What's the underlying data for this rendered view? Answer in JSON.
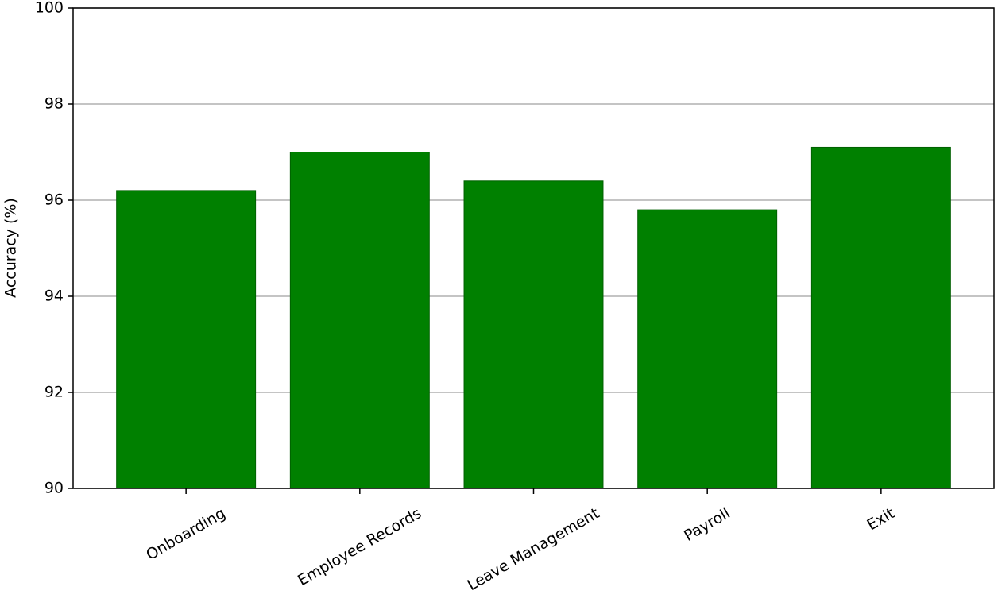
{
  "chart_data": {
    "type": "bar",
    "y_label": "Accuracy (%)",
    "categories": [
      "Onboarding",
      "Employee Records",
      "Leave Management",
      "Payroll",
      "Exit"
    ],
    "values": [
      96.2,
      97.0,
      96.4,
      95.8,
      97.1
    ],
    "color": "#008000",
    "ylim": [
      90,
      100
    ],
    "yticks": [
      90,
      92,
      94,
      96,
      98,
      100
    ],
    "grid": true
  }
}
